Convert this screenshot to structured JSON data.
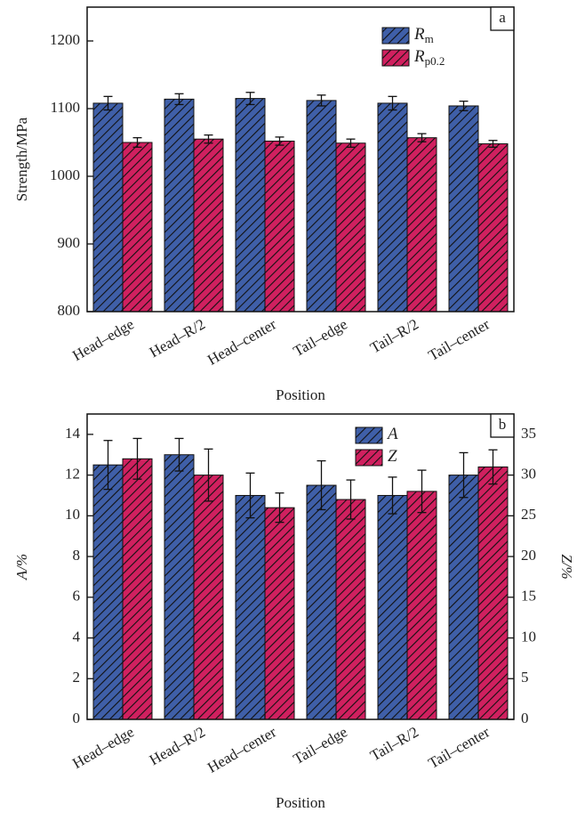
{
  "chart_data": [
    {
      "type": "bar",
      "panel": "a",
      "xlabel": "Position",
      "ylabel": "Strength/MPa",
      "categories": [
        "Head–edge",
        "Head–R/2",
        "Head–center",
        "Tail–edge",
        "Tail–R/2",
        "Tail–center"
      ],
      "series": [
        {
          "name": "Rm",
          "color": "#3f5fa8",
          "values": [
            1108,
            1114,
            1115,
            1112,
            1108,
            1104
          ],
          "errors": [
            10,
            8,
            9,
            8,
            10,
            7
          ]
        },
        {
          "name": "Rp0.2",
          "color": "#d0205f",
          "values": [
            1050,
            1055,
            1052,
            1049,
            1057,
            1048
          ],
          "errors": [
            7,
            6,
            6,
            6,
            6,
            5
          ]
        }
      ],
      "ylim": [
        800,
        1250
      ],
      "yticks": [
        800,
        900,
        1000,
        1100,
        1200
      ]
    },
    {
      "type": "bar",
      "panel": "b",
      "xlabel": "Position",
      "ylabel": "A/%",
      "y2label": "Z/%",
      "categories": [
        "Head–edge",
        "Head–R/2",
        "Head–center",
        "Tail–edge",
        "Tail–R/2",
        "Tail–center"
      ],
      "series": [
        {
          "name": "A",
          "color": "#3f5fa8",
          "values": [
            12.5,
            13,
            11,
            11.5,
            11,
            12
          ],
          "errors": [
            1.2,
            0.8,
            1.1,
            1.2,
            0.9,
            1.1
          ]
        },
        {
          "name": "Z",
          "color": "#d0205f",
          "axis": "y2",
          "values": [
            32,
            30,
            26,
            27,
            28,
            31
          ],
          "errors": [
            2.5,
            3.2,
            1.8,
            2.4,
            2.6,
            2.1
          ]
        }
      ],
      "ylim": [
        0,
        15
      ],
      "yticks": [
        0,
        2,
        4,
        6,
        8,
        10,
        12,
        14
      ],
      "y2lim": [
        0,
        37.5
      ],
      "y2ticks": [
        0,
        5,
        10,
        15,
        20,
        25,
        30,
        35
      ]
    }
  ]
}
